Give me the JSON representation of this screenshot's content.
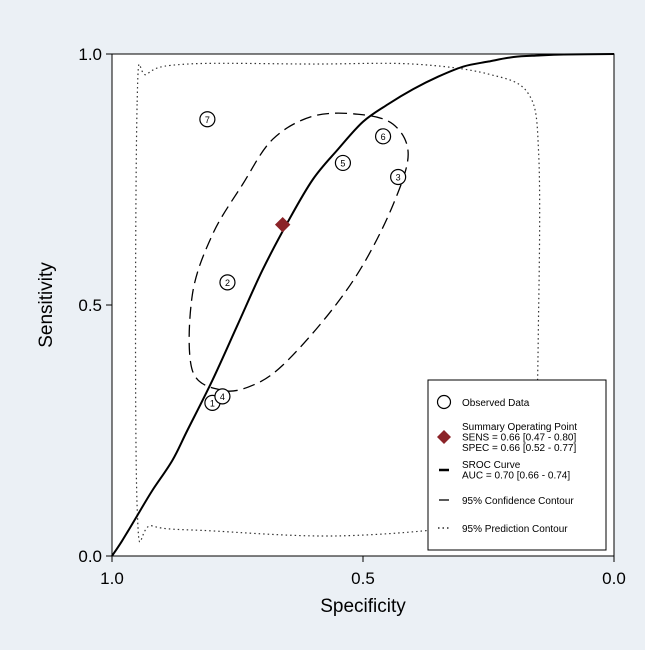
{
  "chart_data": {
    "type": "scatter",
    "xlabel": "Specificity",
    "ylabel": "Sensitivity",
    "xlim": [
      1.0,
      0.0
    ],
    "ylim": [
      0.0,
      1.0
    ],
    "x_ticks": [
      "1.0",
      "0.5",
      "0.0"
    ],
    "y_ticks": [
      "0.0",
      "0.5",
      "1.0"
    ],
    "grid": false,
    "legend_position": "bottom-right",
    "observed_studies": [
      {
        "label": "1",
        "specificity": 0.8,
        "sensitivity": 0.305
      },
      {
        "label": "2",
        "specificity": 0.77,
        "sensitivity": 0.545
      },
      {
        "label": "3",
        "specificity": 0.43,
        "sensitivity": 0.755
      },
      {
        "label": "4",
        "specificity": 0.78,
        "sensitivity": 0.318
      },
      {
        "label": "5",
        "specificity": 0.54,
        "sensitivity": 0.783
      },
      {
        "label": "6",
        "specificity": 0.46,
        "sensitivity": 0.836
      },
      {
        "label": "7",
        "specificity": 0.81,
        "sensitivity": 0.87
      }
    ],
    "summary_point": {
      "specificity": 0.66,
      "sensitivity": 0.66,
      "color": "#8b2328"
    },
    "sroc_curve": [
      [
        1.0,
        0.0
      ],
      [
        0.98,
        0.03
      ],
      [
        0.95,
        0.08
      ],
      [
        0.92,
        0.13
      ],
      [
        0.88,
        0.19
      ],
      [
        0.85,
        0.25
      ],
      [
        0.8,
        0.35
      ],
      [
        0.75,
        0.46
      ],
      [
        0.7,
        0.57
      ],
      [
        0.65,
        0.665
      ],
      [
        0.6,
        0.75
      ],
      [
        0.55,
        0.81
      ],
      [
        0.5,
        0.865
      ],
      [
        0.45,
        0.9
      ],
      [
        0.4,
        0.93
      ],
      [
        0.35,
        0.955
      ],
      [
        0.3,
        0.975
      ],
      [
        0.25,
        0.985
      ],
      [
        0.2,
        0.994
      ],
      [
        0.15,
        0.997
      ],
      [
        0.1,
        0.999
      ],
      [
        0.0,
        1.0
      ]
    ],
    "confidence_contour": [
      [
        0.78,
        0.33
      ],
      [
        0.84,
        0.37
      ],
      [
        0.84,
        0.52
      ],
      [
        0.8,
        0.64
      ],
      [
        0.74,
        0.74
      ],
      [
        0.68,
        0.83
      ],
      [
        0.6,
        0.876
      ],
      [
        0.51,
        0.88
      ],
      [
        0.44,
        0.86
      ],
      [
        0.41,
        0.8
      ],
      [
        0.44,
        0.7
      ],
      [
        0.5,
        0.58
      ],
      [
        0.57,
        0.48
      ],
      [
        0.66,
        0.38
      ],
      [
        0.72,
        0.34
      ]
    ],
    "prediction_contour": [
      [
        0.95,
        0.9
      ],
      [
        0.95,
        0.1
      ],
      [
        0.92,
        0.06
      ],
      [
        0.8,
        0.05
      ],
      [
        0.55,
        0.04
      ],
      [
        0.3,
        0.06
      ],
      [
        0.2,
        0.1
      ],
      [
        0.16,
        0.2
      ],
      [
        0.15,
        0.5
      ],
      [
        0.15,
        0.8
      ],
      [
        0.17,
        0.92
      ],
      [
        0.25,
        0.96
      ],
      [
        0.4,
        0.98
      ],
      [
        0.6,
        0.98
      ],
      [
        0.85,
        0.98
      ],
      [
        0.93,
        0.96
      ]
    ],
    "legend": [
      {
        "symbol": "circle",
        "lines": [
          "Observed Data"
        ]
      },
      {
        "symbol": "diamond",
        "lines": [
          "Summary Operating Point",
          "SENS = 0.66 [0.47 - 0.80]",
          "SPEC = 0.66 [0.52 - 0.77]"
        ]
      },
      {
        "symbol": "solid",
        "lines": [
          "SROC Curve",
          "AUC = 0.70 [0.66 - 0.74]"
        ]
      },
      {
        "symbol": "dashed",
        "lines": [
          "95% Confidence Contour"
        ]
      },
      {
        "symbol": "dotted",
        "lines": [
          "95% Prediction Contour"
        ]
      }
    ]
  }
}
